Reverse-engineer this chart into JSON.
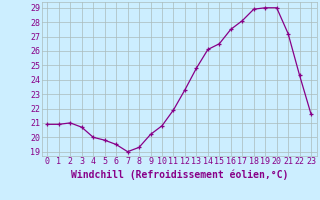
{
  "x": [
    0,
    1,
    2,
    3,
    4,
    5,
    6,
    7,
    8,
    9,
    10,
    11,
    12,
    13,
    14,
    15,
    16,
    17,
    18,
    19,
    20,
    21,
    22,
    23
  ],
  "y": [
    20.9,
    20.9,
    21.0,
    20.7,
    20.0,
    19.8,
    19.5,
    19.0,
    19.3,
    20.2,
    20.8,
    21.9,
    23.3,
    24.8,
    26.1,
    26.5,
    27.5,
    28.1,
    28.9,
    29.0,
    29.0,
    27.2,
    24.3,
    21.6
  ],
  "line_color": "#880088",
  "marker": "+",
  "marker_size": 3,
  "bg_color": "#cceeff",
  "grid_color": "#aabbbb",
  "xlabel": "Windchill (Refroidissement éolien,°C)",
  "yticks": [
    19,
    20,
    21,
    22,
    23,
    24,
    25,
    26,
    27,
    28,
    29
  ],
  "xticks": [
    0,
    1,
    2,
    3,
    4,
    5,
    6,
    7,
    8,
    9,
    10,
    11,
    12,
    13,
    14,
    15,
    16,
    17,
    18,
    19,
    20,
    21,
    22,
    23
  ],
  "ylim": [
    18.7,
    29.4
  ],
  "xlim": [
    -0.5,
    23.5
  ],
  "tick_fontsize": 6,
  "xlabel_fontsize": 7
}
